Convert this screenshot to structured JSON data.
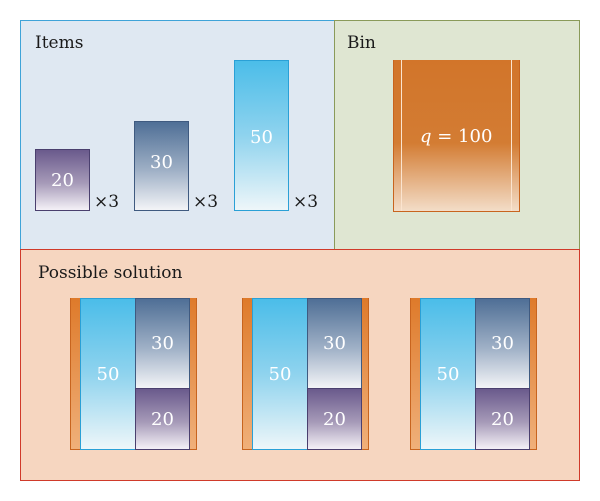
{
  "panels": {
    "items": {
      "title": "Items"
    },
    "bin": {
      "title": "Bin"
    },
    "solution": {
      "title": "Possible solution"
    }
  },
  "items": [
    {
      "value": "20",
      "multiplier": "×3"
    },
    {
      "value": "30",
      "multiplier": "×3"
    },
    {
      "value": "50",
      "multiplier": "×3"
    }
  ],
  "bin": {
    "capacity_var": "q",
    "capacity_rest": " = 100"
  },
  "solutions": [
    {
      "big": "50",
      "top": "30",
      "bottom": "20"
    },
    {
      "big": "50",
      "top": "30",
      "bottom": "20"
    },
    {
      "big": "50",
      "top": "30",
      "bottom": "20"
    }
  ],
  "colors": {
    "items_panel_bg": "#dfe8f2",
    "items_panel_border": "#3fa3d8",
    "bin_panel_bg": "#dfe6d2",
    "bin_panel_border": "#8a9a5a",
    "solution_panel_bg": "#f6d6c0",
    "solution_panel_border": "#d03a2a",
    "bin_orange": "#d2752a"
  }
}
